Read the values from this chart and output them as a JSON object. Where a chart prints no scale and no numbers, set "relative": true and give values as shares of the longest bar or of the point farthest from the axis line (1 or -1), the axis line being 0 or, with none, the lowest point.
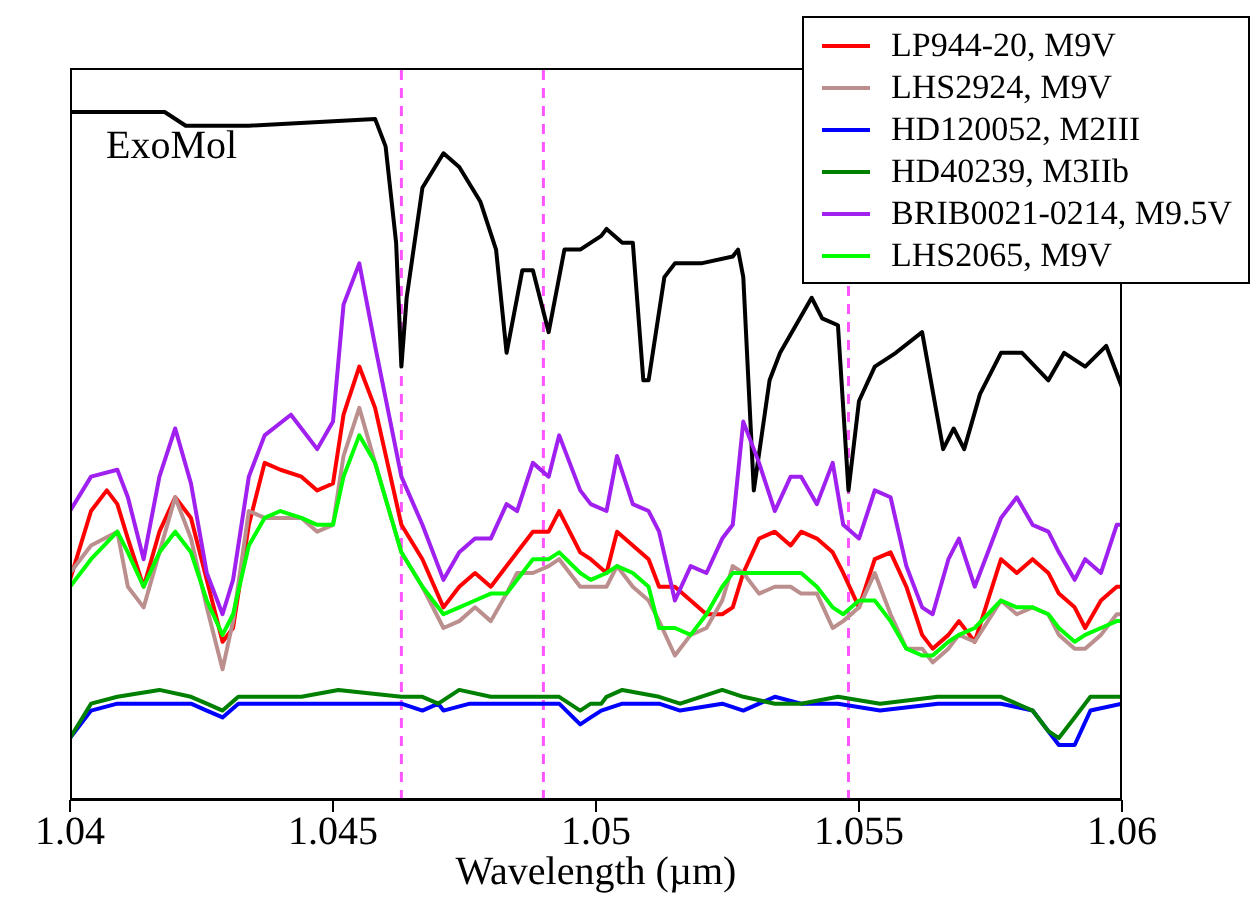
{
  "chart_data": {
    "type": "line",
    "relative": true,
    "xlabel": "Wavelength (µm)",
    "annotations": [
      "ExoMol"
    ],
    "xlim": [
      1.04,
      1.06
    ],
    "xticks": [
      1.04,
      1.045,
      1.05,
      1.055,
      1.06
    ],
    "legend": "top right",
    "marker": "none",
    "line_style": "solid",
    "ref_lines": [
      {
        "axis": "x",
        "value": 1.0463,
        "color": "#ff55ff",
        "line_style": "dashed"
      },
      {
        "axis": "x",
        "value": 1.049,
        "color": "#ff55ff",
        "line_style": "dashed"
      },
      {
        "axis": "x",
        "value": 1.0548,
        "color": "#ff55ff",
        "line_style": "dashed"
      }
    ],
    "series": [
      {
        "color": "#000000",
        "x": [
          1.04,
          1.0418,
          1.0422,
          1.0434,
          1.0458,
          1.046,
          1.0462,
          1.0463,
          1.0464,
          1.0467,
          1.0471,
          1.0474,
          1.0478,
          1.0481,
          1.0483,
          1.0486,
          1.0488,
          1.0491,
          1.0494,
          1.0497,
          1.0501,
          1.0502,
          1.0505,
          1.0507,
          1.0509,
          1.051,
          1.0513,
          1.0515,
          1.052,
          1.0526,
          1.0527,
          1.0528,
          1.053,
          1.0533,
          1.0535,
          1.0541,
          1.0543,
          1.0546,
          1.0548,
          1.055,
          1.0553,
          1.0557,
          1.0562,
          1.0566,
          1.0568,
          1.057,
          1.0573,
          1.0577,
          1.0581,
          1.0586,
          1.0589,
          1.0593,
          1.0597,
          1.06
        ],
        "values": [
          1.0,
          1.0,
          0.98,
          0.98,
          0.99,
          0.95,
          0.81,
          0.63,
          0.73,
          0.89,
          0.94,
          0.92,
          0.87,
          0.8,
          0.65,
          0.77,
          0.77,
          0.68,
          0.8,
          0.8,
          0.82,
          0.83,
          0.81,
          0.81,
          0.61,
          0.61,
          0.76,
          0.78,
          0.78,
          0.79,
          0.8,
          0.76,
          0.45,
          0.61,
          0.65,
          0.73,
          0.7,
          0.69,
          0.45,
          0.58,
          0.63,
          0.65,
          0.68,
          0.51,
          0.54,
          0.51,
          0.59,
          0.65,
          0.65,
          0.61,
          0.65,
          0.63,
          0.66,
          0.6
        ]
      },
      {
        "name": "LP944-20, M9V",
        "color": "#ff0000",
        "x": [
          1.04,
          1.0404,
          1.0407,
          1.0409,
          1.0411,
          1.0414,
          1.0417,
          1.042,
          1.0423,
          1.0426,
          1.0429,
          1.0431,
          1.0434,
          1.0437,
          1.044,
          1.0444,
          1.0447,
          1.045,
          1.0452,
          1.0455,
          1.0458,
          1.0463,
          1.0467,
          1.0471,
          1.0474,
          1.0477,
          1.048,
          1.0483,
          1.0485,
          1.0488,
          1.0491,
          1.0493,
          1.0497,
          1.0499,
          1.0502,
          1.0504,
          1.0507,
          1.051,
          1.0512,
          1.0515,
          1.0518,
          1.0521,
          1.0524,
          1.0526,
          1.0528,
          1.0531,
          1.0534,
          1.0537,
          1.0539,
          1.0542,
          1.0545,
          1.0547,
          1.055,
          1.0553,
          1.0556,
          1.0559,
          1.0562,
          1.0564,
          1.0567,
          1.0569,
          1.0572,
          1.0577,
          1.058,
          1.0583,
          1.0586,
          1.0588,
          1.0591,
          1.0593,
          1.0596,
          1.0599,
          1.06
        ],
        "values": [
          0.32,
          0.42,
          0.45,
          0.43,
          0.38,
          0.31,
          0.39,
          0.44,
          0.41,
          0.32,
          0.23,
          0.25,
          0.4,
          0.49,
          0.48,
          0.47,
          0.45,
          0.46,
          0.56,
          0.63,
          0.57,
          0.4,
          0.35,
          0.28,
          0.31,
          0.33,
          0.31,
          0.34,
          0.36,
          0.39,
          0.39,
          0.42,
          0.36,
          0.35,
          0.33,
          0.39,
          0.37,
          0.35,
          0.31,
          0.31,
          0.29,
          0.27,
          0.27,
          0.28,
          0.33,
          0.38,
          0.39,
          0.37,
          0.39,
          0.38,
          0.36,
          0.33,
          0.28,
          0.35,
          0.36,
          0.31,
          0.24,
          0.22,
          0.24,
          0.26,
          0.23,
          0.35,
          0.33,
          0.35,
          0.33,
          0.3,
          0.28,
          0.25,
          0.29,
          0.31,
          0.31
        ]
      },
      {
        "name": "LHS2924, M9V",
        "color": "#bc8f8f",
        "x": [
          1.04,
          1.0404,
          1.0409,
          1.0411,
          1.0414,
          1.0417,
          1.042,
          1.0423,
          1.0426,
          1.0429,
          1.0431,
          1.0434,
          1.0437,
          1.044,
          1.0444,
          1.0447,
          1.045,
          1.0452,
          1.0455,
          1.0458,
          1.0463,
          1.0467,
          1.0471,
          1.0474,
          1.0477,
          1.048,
          1.0483,
          1.0485,
          1.0488,
          1.0491,
          1.0493,
          1.0497,
          1.0499,
          1.0502,
          1.0504,
          1.0507,
          1.051,
          1.0512,
          1.0515,
          1.0518,
          1.0521,
          1.0524,
          1.0526,
          1.0528,
          1.0531,
          1.0534,
          1.0537,
          1.0539,
          1.0542,
          1.0545,
          1.0547,
          1.055,
          1.0553,
          1.0556,
          1.0559,
          1.0562,
          1.0564,
          1.0567,
          1.0569,
          1.0572,
          1.0577,
          1.058,
          1.0583,
          1.0586,
          1.0588,
          1.0591,
          1.0593,
          1.0596,
          1.0599,
          1.06
        ],
        "values": [
          0.33,
          0.37,
          0.39,
          0.31,
          0.28,
          0.36,
          0.44,
          0.38,
          0.28,
          0.19,
          0.26,
          0.42,
          0.41,
          0.41,
          0.41,
          0.39,
          0.4,
          0.5,
          0.57,
          0.49,
          0.36,
          0.31,
          0.25,
          0.26,
          0.28,
          0.26,
          0.3,
          0.33,
          0.33,
          0.34,
          0.35,
          0.31,
          0.31,
          0.31,
          0.34,
          0.31,
          0.29,
          0.26,
          0.21,
          0.24,
          0.25,
          0.29,
          0.34,
          0.33,
          0.3,
          0.31,
          0.31,
          0.3,
          0.3,
          0.25,
          0.26,
          0.28,
          0.33,
          0.27,
          0.22,
          0.22,
          0.2,
          0.22,
          0.24,
          0.23,
          0.29,
          0.27,
          0.28,
          0.27,
          0.24,
          0.22,
          0.22,
          0.24,
          0.27,
          0.27
        ]
      },
      {
        "name": "HD120052, M2III",
        "color": "#0000ff",
        "x": [
          1.04,
          1.0404,
          1.0409,
          1.0417,
          1.0423,
          1.0426,
          1.0429,
          1.0432,
          1.0444,
          1.0451,
          1.0463,
          1.0467,
          1.047,
          1.0471,
          1.0476,
          1.0486,
          1.0489,
          1.0493,
          1.0497,
          1.0499,
          1.0501,
          1.0505,
          1.0512,
          1.0516,
          1.0524,
          1.0528,
          1.0534,
          1.0539,
          1.0546,
          1.0554,
          1.0565,
          1.0577,
          1.0583,
          1.0586,
          1.0588,
          1.0591,
          1.0594,
          1.06
        ],
        "values": [
          0.09,
          0.13,
          0.14,
          0.14,
          0.14,
          0.13,
          0.12,
          0.14,
          0.14,
          0.14,
          0.14,
          0.13,
          0.14,
          0.13,
          0.14,
          0.14,
          0.14,
          0.14,
          0.11,
          0.12,
          0.13,
          0.14,
          0.14,
          0.13,
          0.14,
          0.13,
          0.15,
          0.14,
          0.14,
          0.13,
          0.14,
          0.14,
          0.13,
          0.1,
          0.08,
          0.08,
          0.13,
          0.14
        ]
      },
      {
        "name": "HD40239, M3IIb",
        "color": "#008000",
        "x": [
          1.04,
          1.0404,
          1.0409,
          1.0417,
          1.0423,
          1.0426,
          1.0429,
          1.0432,
          1.0444,
          1.0451,
          1.0463,
          1.0467,
          1.047,
          1.0474,
          1.048,
          1.0489,
          1.0493,
          1.0497,
          1.0499,
          1.0501,
          1.0502,
          1.0505,
          1.0512,
          1.0516,
          1.0524,
          1.0528,
          1.0534,
          1.0539,
          1.0546,
          1.0554,
          1.0565,
          1.0577,
          1.0583,
          1.0586,
          1.0588,
          1.0591,
          1.0594,
          1.06
        ],
        "values": [
          0.09,
          0.14,
          0.15,
          0.16,
          0.15,
          0.14,
          0.13,
          0.15,
          0.15,
          0.16,
          0.15,
          0.15,
          0.14,
          0.16,
          0.15,
          0.15,
          0.15,
          0.13,
          0.14,
          0.14,
          0.15,
          0.16,
          0.15,
          0.14,
          0.16,
          0.15,
          0.14,
          0.14,
          0.15,
          0.14,
          0.15,
          0.15,
          0.13,
          0.1,
          0.09,
          0.12,
          0.15,
          0.15
        ]
      },
      {
        "name": "BRIB0021-0214, M9.5V",
        "color": "#a020f0",
        "x": [
          1.04,
          1.0404,
          1.0409,
          1.0411,
          1.0414,
          1.0417,
          1.042,
          1.0423,
          1.0426,
          1.0429,
          1.0431,
          1.0434,
          1.0437,
          1.0442,
          1.0447,
          1.045,
          1.0452,
          1.0455,
          1.0458,
          1.0463,
          1.0467,
          1.0471,
          1.0474,
          1.0477,
          1.048,
          1.0483,
          1.0485,
          1.0488,
          1.0491,
          1.0493,
          1.0497,
          1.0499,
          1.0502,
          1.0504,
          1.0507,
          1.051,
          1.0512,
          1.0515,
          1.0518,
          1.0521,
          1.0524,
          1.0526,
          1.0528,
          1.0531,
          1.0534,
          1.0537,
          1.0539,
          1.0542,
          1.0545,
          1.0547,
          1.055,
          1.0553,
          1.0556,
          1.0559,
          1.0562,
          1.0564,
          1.0567,
          1.0569,
          1.0572,
          1.0577,
          1.058,
          1.0583,
          1.0586,
          1.0588,
          1.0591,
          1.0593,
          1.0596,
          1.0599,
          1.06
        ],
        "values": [
          0.42,
          0.47,
          0.48,
          0.44,
          0.35,
          0.47,
          0.54,
          0.46,
          0.33,
          0.27,
          0.32,
          0.47,
          0.53,
          0.56,
          0.51,
          0.55,
          0.72,
          0.78,
          0.66,
          0.47,
          0.4,
          0.32,
          0.36,
          0.38,
          0.38,
          0.43,
          0.42,
          0.49,
          0.47,
          0.53,
          0.45,
          0.43,
          0.42,
          0.5,
          0.43,
          0.42,
          0.39,
          0.29,
          0.34,
          0.33,
          0.38,
          0.4,
          0.55,
          0.49,
          0.42,
          0.47,
          0.47,
          0.43,
          0.49,
          0.4,
          0.38,
          0.45,
          0.44,
          0.34,
          0.28,
          0.27,
          0.35,
          0.38,
          0.31,
          0.41,
          0.44,
          0.4,
          0.39,
          0.36,
          0.32,
          0.35,
          0.33,
          0.4,
          0.4
        ]
      },
      {
        "name": "LHS2065, M9V",
        "color": "#00ff00",
        "x": [
          1.04,
          1.0404,
          1.0409,
          1.0411,
          1.0414,
          1.0417,
          1.042,
          1.0423,
          1.0426,
          1.0429,
          1.0431,
          1.0434,
          1.0437,
          1.044,
          1.0444,
          1.0447,
          1.045,
          1.0452,
          1.0455,
          1.0458,
          1.0463,
          1.0467,
          1.0471,
          1.0474,
          1.0477,
          1.048,
          1.0483,
          1.0485,
          1.0488,
          1.0491,
          1.0493,
          1.0497,
          1.0499,
          1.0502,
          1.0504,
          1.0507,
          1.051,
          1.0512,
          1.0515,
          1.0518,
          1.0521,
          1.0524,
          1.0526,
          1.0528,
          1.0531,
          1.0534,
          1.0537,
          1.0539,
          1.0542,
          1.0545,
          1.0547,
          1.055,
          1.0553,
          1.0556,
          1.0559,
          1.0562,
          1.0564,
          1.0567,
          1.0569,
          1.0572,
          1.0577,
          1.058,
          1.0583,
          1.0586,
          1.0588,
          1.0591,
          1.0593,
          1.0596,
          1.0599,
          1.06
        ],
        "values": [
          0.31,
          0.35,
          0.39,
          0.36,
          0.31,
          0.36,
          0.39,
          0.36,
          0.29,
          0.24,
          0.27,
          0.37,
          0.41,
          0.42,
          0.41,
          0.4,
          0.4,
          0.47,
          0.53,
          0.49,
          0.36,
          0.31,
          0.27,
          0.28,
          0.29,
          0.3,
          0.3,
          0.32,
          0.35,
          0.35,
          0.36,
          0.33,
          0.32,
          0.33,
          0.34,
          0.33,
          0.31,
          0.25,
          0.25,
          0.24,
          0.27,
          0.31,
          0.33,
          0.33,
          0.33,
          0.33,
          0.33,
          0.33,
          0.31,
          0.28,
          0.27,
          0.29,
          0.29,
          0.26,
          0.22,
          0.21,
          0.21,
          0.23,
          0.24,
          0.25,
          0.29,
          0.28,
          0.28,
          0.27,
          0.25,
          0.23,
          0.24,
          0.25,
          0.26,
          0.26
        ]
      }
    ]
  }
}
